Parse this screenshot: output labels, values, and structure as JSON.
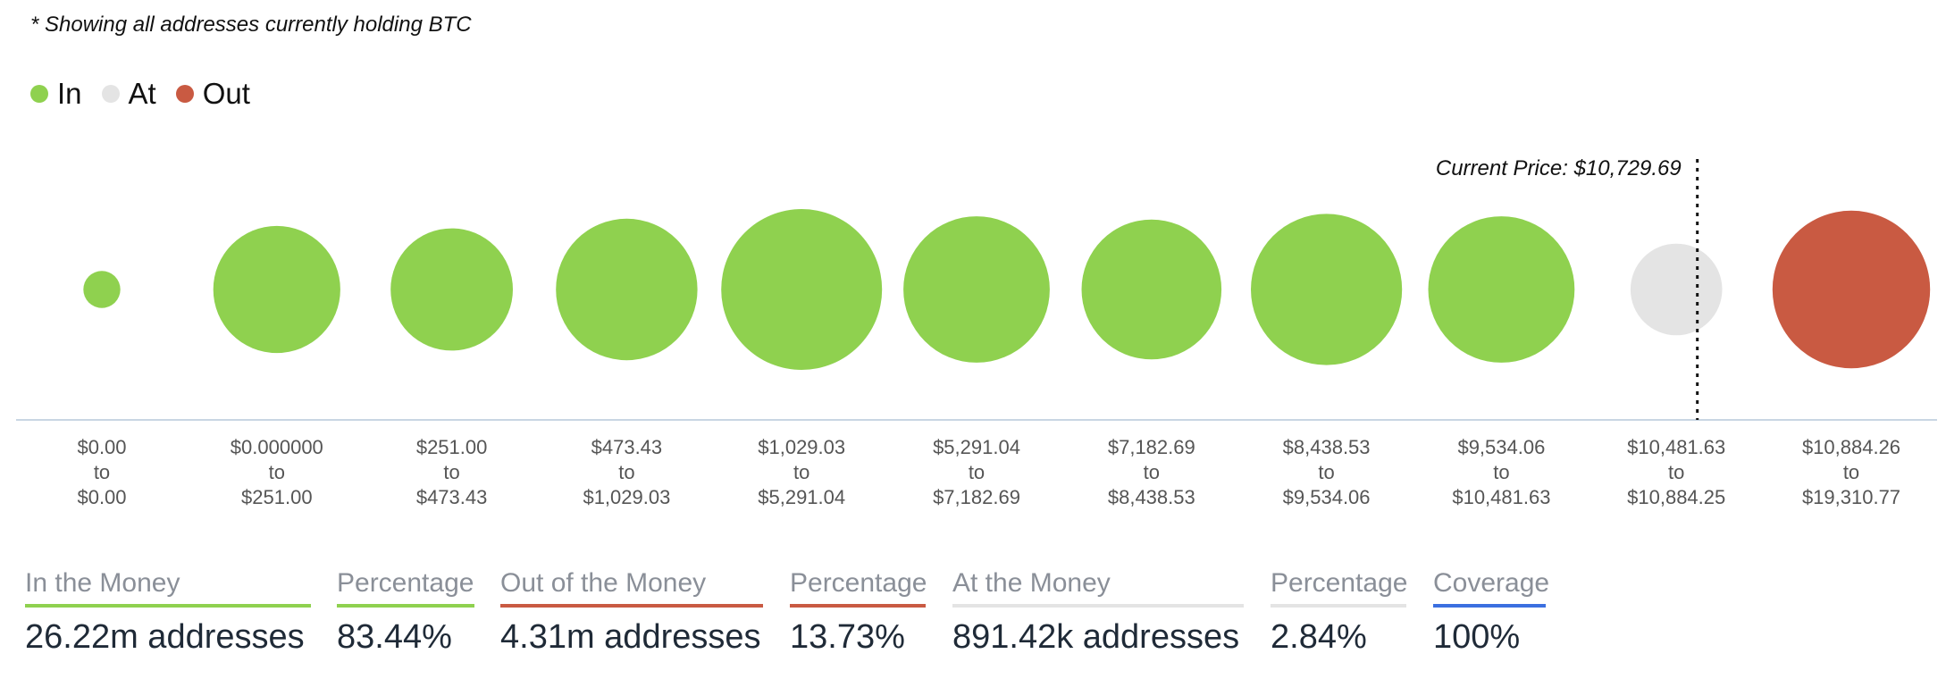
{
  "note": "* Showing all addresses currently holding BTC",
  "legend": [
    {
      "label": "In",
      "color": "#8fd14f"
    },
    {
      "label": "At",
      "color": "#e4e4e4"
    },
    {
      "label": "Out",
      "color": "#c95a42"
    }
  ],
  "chart_data": {
    "type": "bubble",
    "title": "",
    "current_price_label": "Current Price: $10,729.69",
    "current_price": 10729.69,
    "categories": [
      {
        "from": "$0.00",
        "to": "$0.00",
        "status": "In",
        "relative_size": 0.23
      },
      {
        "from": "$0.000000",
        "to": "$251.00",
        "status": "In",
        "relative_size": 0.79
      },
      {
        "from": "$251.00",
        "to": "$473.43",
        "status": "In",
        "relative_size": 0.76
      },
      {
        "from": "$473.43",
        "to": "$1,029.03",
        "status": "In",
        "relative_size": 0.88
      },
      {
        "from": "$1,029.03",
        "to": "$5,291.04",
        "status": "In",
        "relative_size": 1.0
      },
      {
        "from": "$5,291.04",
        "to": "$7,182.69",
        "status": "In",
        "relative_size": 0.91
      },
      {
        "from": "$7,182.69",
        "to": "$8,438.53",
        "status": "In",
        "relative_size": 0.87
      },
      {
        "from": "$8,438.53",
        "to": "$9,534.06",
        "status": "In",
        "relative_size": 0.94
      },
      {
        "from": "$9,534.06",
        "to": "$10,481.63",
        "status": "In",
        "relative_size": 0.91
      },
      {
        "from": "$10,481.63",
        "to": "$10,884.25",
        "status": "At",
        "relative_size": 0.57
      },
      {
        "from": "$10,884.26",
        "to": "$19,310.77",
        "status": "Out",
        "relative_size": 0.98
      }
    ],
    "to_word": "to",
    "colors": {
      "In": "#8fd14f",
      "At": "#e4e4e4",
      "Out": "#c95a42",
      "axis": "#c9d6e3"
    }
  },
  "stats": [
    {
      "label": "In the Money",
      "value": "26.22m addresses",
      "bar_color": "#8fd14f"
    },
    {
      "label": "Percentage",
      "value": "83.44%",
      "bar_color": "#8fd14f"
    },
    {
      "label": "Out of the Money",
      "value": "4.31m addresses",
      "bar_color": "#c95a42"
    },
    {
      "label": "Percentage",
      "value": "13.73%",
      "bar_color": "#c95a42"
    },
    {
      "label": "At the Money",
      "value": "891.42k addresses",
      "bar_color": "#e4e4e4"
    },
    {
      "label": "Percentage",
      "value": "2.84%",
      "bar_color": "#e4e4e4"
    },
    {
      "label": "Coverage",
      "value": "100%",
      "bar_color": "#3b6fe0"
    }
  ]
}
